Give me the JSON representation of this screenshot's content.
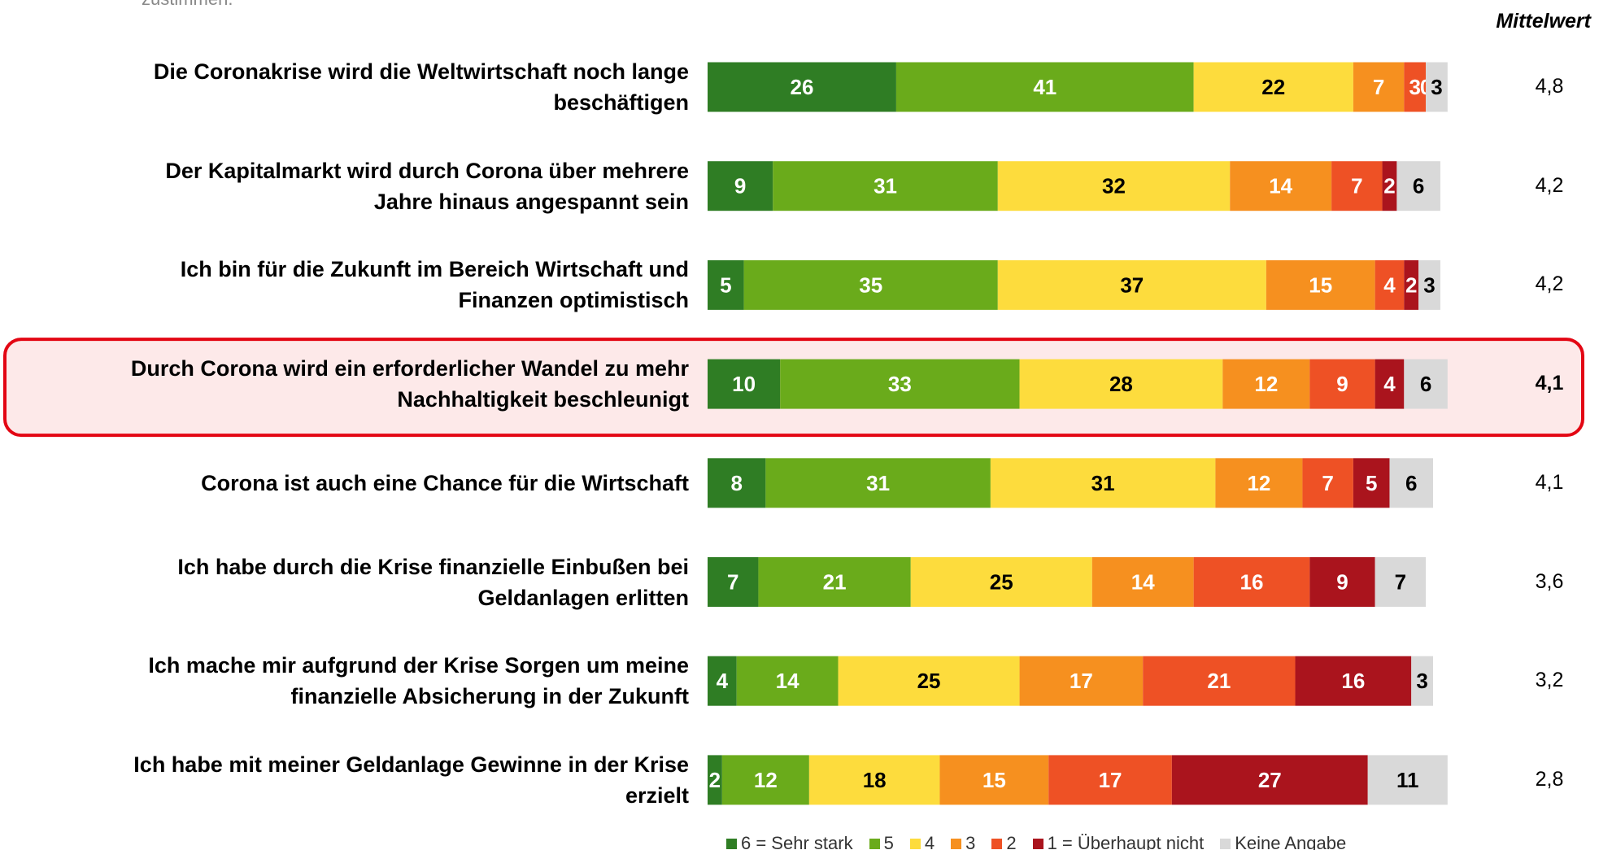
{
  "chart_data": {
    "type": "stacked-bar-horizontal",
    "subtitle": "zustimmen.",
    "mean_header": "Mittelwert",
    "categories": [
      "Die Coronakrise wird die Weltwirtschaft noch lange\nbeschäftigen",
      "Der Kapitalmarkt wird durch Corona über mehrere\nJahre hinaus angespannt sein",
      "Ich bin für die Zukunft im Bereich Wirtschaft und\nFinanzen optimistisch",
      "Durch Corona wird ein erforderlicher Wandel zu mehr\nNachhaltigkeit beschleunigt",
      "Corona ist auch eine Chance für die Wirtschaft",
      "Ich habe durch die Krise finanzielle Einbußen bei\nGeldanlagen erlitten",
      "Ich mache mir aufgrund der Krise Sorgen um meine\nfinanzielle Absicherung in der Zukunft",
      "Ich habe mit meiner Geldanlage Gewinne in der Krise\nerzielt"
    ],
    "series": [
      {
        "name": "6 = Sehr stark",
        "color": "#2f7d24",
        "label_color": "#ffffff",
        "values": [
          26,
          9,
          5,
          10,
          8,
          7,
          4,
          2
        ]
      },
      {
        "name": "5",
        "color": "#6aab1b",
        "label_color": "#ffffff",
        "values": [
          41,
          31,
          35,
          33,
          31,
          21,
          14,
          12
        ]
      },
      {
        "name": "4",
        "color": "#fddc3d",
        "label_color": "#000000",
        "values": [
          22,
          32,
          37,
          28,
          31,
          25,
          25,
          18
        ]
      },
      {
        "name": "3",
        "color": "#f6901f",
        "label_color": "#ffffff",
        "values": [
          7,
          14,
          15,
          12,
          12,
          14,
          17,
          15
        ]
      },
      {
        "name": "2",
        "color": "#ee5125",
        "label_color": "#ffffff",
        "values": [
          3,
          7,
          4,
          9,
          7,
          16,
          21,
          17
        ]
      },
      {
        "name": "1 = Überhaupt nicht",
        "color": "#aa141d",
        "label_color": "#ffffff",
        "values": [
          0,
          2,
          2,
          4,
          5,
          9,
          16,
          27
        ]
      },
      {
        "name": "Keine Angabe",
        "color": "#d9d9d9",
        "label_color": "#000000",
        "values": [
          3,
          6,
          3,
          6,
          6,
          7,
          3,
          11
        ]
      }
    ],
    "means": {
      "values": [
        4.8,
        4.2,
        4.2,
        4.1,
        4.1,
        3.6,
        3.2,
        2.8
      ],
      "value_labels": [
        "4,8",
        "4,2",
        "4,2",
        "4,1",
        "4,1",
        "3,6",
        "3,2",
        "2,8"
      ]
    },
    "highlight": 3
  }
}
